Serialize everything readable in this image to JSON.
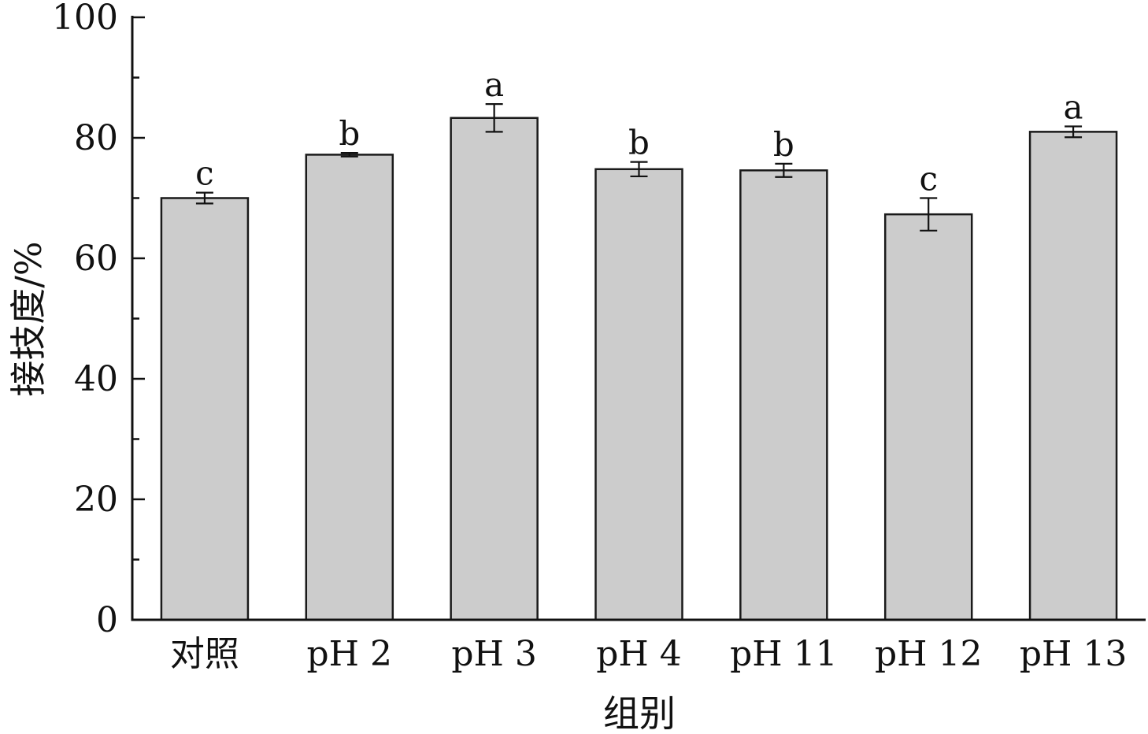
{
  "chart_data": {
    "type": "bar",
    "title": "",
    "xlabel": "组别",
    "ylabel": "接技度/%",
    "categories": [
      "对照",
      "pH 2",
      "pH 3",
      "pH 4",
      "pH 11",
      "pH 12",
      "pH 13"
    ],
    "values": [
      70.0,
      77.2,
      83.3,
      74.8,
      74.6,
      67.3,
      81.0
    ],
    "errors": [
      0.9,
      0.3,
      2.3,
      1.2,
      1.1,
      2.7,
      0.9
    ],
    "significance": [
      "c",
      "b",
      "a",
      "b",
      "b",
      "c",
      "a"
    ],
    "ylim": [
      0,
      100
    ],
    "yticks": [
      "0",
      "20",
      "40",
      "60",
      "80",
      "100"
    ],
    "grid": false,
    "legend": "none",
    "colors": {
      "bar": "#cccccc",
      "edge": "#1a1a1a",
      "axis": "#111111"
    }
  }
}
